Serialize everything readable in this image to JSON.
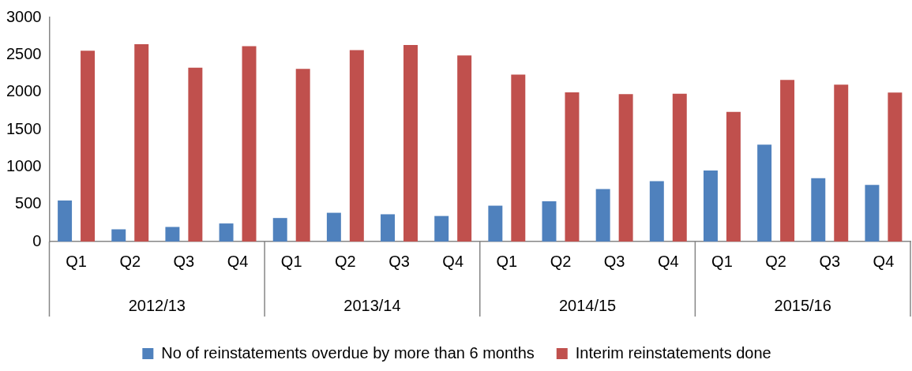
{
  "chart_data": {
    "type": "bar",
    "categories": [
      "Q1",
      "Q2",
      "Q3",
      "Q4",
      "Q1",
      "Q2",
      "Q3",
      "Q4",
      "Q1",
      "Q2",
      "Q3",
      "Q4",
      "Q1",
      "Q2",
      "Q3",
      "Q4"
    ],
    "series": [
      {
        "name": "No of reinstatements overdue by more than 6 months",
        "color": "#4f81bd",
        "values": [
          550,
          165,
          196,
          242,
          315,
          385,
          365,
          342,
          480,
          539,
          703,
          807,
          952,
          1297,
          848,
          758
        ]
      },
      {
        "name": "Interim reinstatements done",
        "color": "#c0504d",
        "values": [
          2554,
          2642,
          2327,
          2615,
          2312,
          2562,
          2631,
          2490,
          2234,
          1996,
          1974,
          1978,
          1736,
          2164,
          2100,
          1993
        ]
      }
    ],
    "annotations": [
      "2012/13",
      "2013/14",
      "2014/15",
      "2015/16"
    ],
    "ylim": [
      0,
      3000
    ],
    "yticks": [
      0,
      500,
      1000,
      1500,
      2000,
      2500,
      3000
    ],
    "grid": false,
    "legend": "bottom"
  }
}
